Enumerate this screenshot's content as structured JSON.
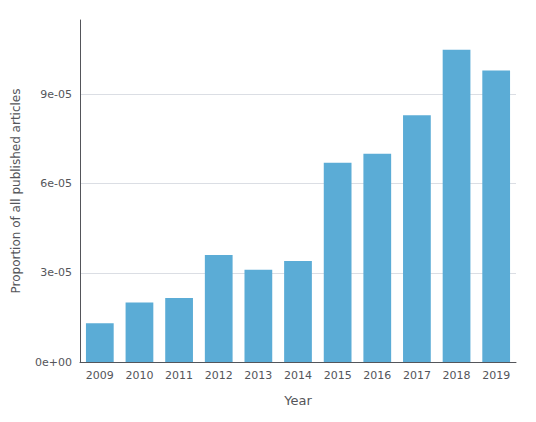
{
  "chart_data": {
    "type": "bar",
    "xlabel": "Year",
    "ylabel": "Proportion of all published articles",
    "categories": [
      "2009",
      "2010",
      "2011",
      "2012",
      "2013",
      "2014",
      "2015",
      "2016",
      "2017",
      "2018",
      "2019"
    ],
    "values": [
      1.3e-05,
      2e-05,
      2.15e-05,
      3.6e-05,
      3.1e-05,
      3.4e-05,
      6.7e-05,
      7e-05,
      8.3e-05,
      0.000105,
      9.8e-05
    ],
    "color": "#5BACD6",
    "ylim": [
      0,
      0.000115
    ],
    "yticks": [
      {
        "value": 0,
        "label": "0e+00"
      },
      {
        "value": 3e-05,
        "label": "3e-05"
      },
      {
        "value": 6e-05,
        "label": "6e-05"
      },
      {
        "value": 9e-05,
        "label": "9e-05"
      }
    ],
    "grid": true
  }
}
